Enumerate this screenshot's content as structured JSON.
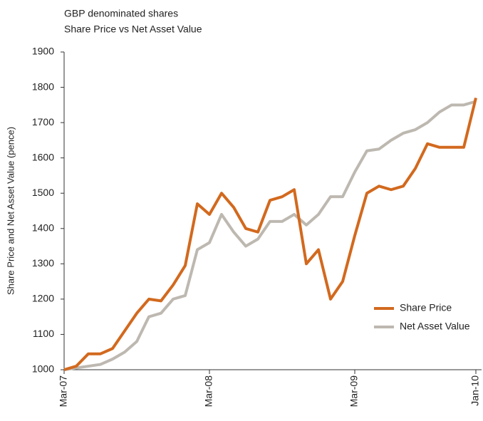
{
  "chart_data": {
    "type": "line",
    "title": "GBP denominated shares",
    "subtitle": "Share Price vs Net Asset Value",
    "y_label": "Share Price and Net Asset Value (pence)",
    "x": [
      "Mar-07",
      null,
      null,
      null,
      null,
      null,
      null,
      null,
      null,
      null,
      null,
      null,
      "Mar-08",
      null,
      null,
      null,
      null,
      null,
      null,
      null,
      null,
      null,
      null,
      null,
      "Mar-09",
      null,
      null,
      null,
      null,
      null,
      null,
      null,
      null,
      null,
      "Jan-10"
    ],
    "series": [
      {
        "name": "Share Price",
        "color": "#d2691e",
        "values": [
          1000,
          1010,
          1045,
          1045,
          1060,
          1110,
          1160,
          1200,
          1195,
          1240,
          1295,
          1470,
          1440,
          1500,
          1460,
          1400,
          1390,
          1480,
          1490,
          1510,
          1300,
          1340,
          1200,
          1250,
          1380,
          1500,
          1520,
          1510,
          1520,
          1570,
          1640,
          1630,
          1630,
          1630,
          1770
        ]
      },
      {
        "name": "Net Asset Value",
        "color": "#bdb8b0",
        "values": [
          1000,
          1005,
          1010,
          1015,
          1030,
          1050,
          1080,
          1150,
          1160,
          1200,
          1210,
          1340,
          1360,
          1440,
          1390,
          1350,
          1370,
          1420,
          1420,
          1440,
          1410,
          1440,
          1490,
          1490,
          1560,
          1620,
          1625,
          1650,
          1670,
          1680,
          1700,
          1730,
          1750,
          1750,
          1760
        ]
      }
    ],
    "ylim": [
      1000,
      1900
    ],
    "yticks": [
      1000,
      1100,
      1200,
      1300,
      1400,
      1500,
      1600,
      1700,
      1800,
      1900
    ],
    "legend": "lower right"
  }
}
